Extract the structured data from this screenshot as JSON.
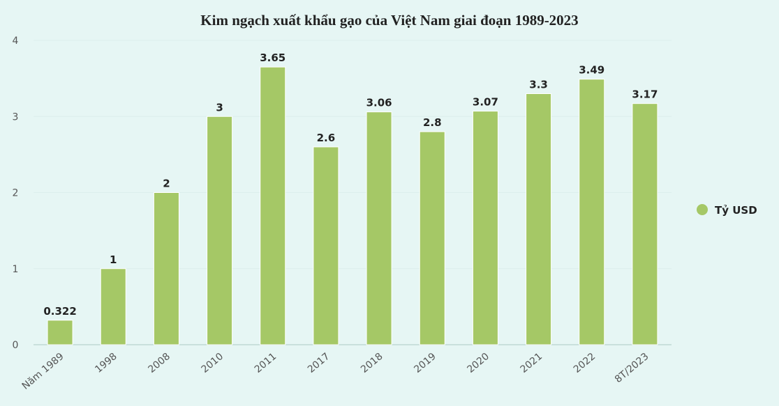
{
  "chart_data": {
    "type": "bar",
    "title": "Kim ngạch xuất khẩu gạo của Việt Nam giai đoạn 1989-2023",
    "categories": [
      "Năm 1989",
      "1998",
      "2008",
      "2010",
      "2011",
      "2017",
      "2018",
      "2019",
      "2020",
      "2021",
      "2022",
      "8T/2023"
    ],
    "series": [
      {
        "name": "Tỷ USD",
        "color": "#a5c866",
        "values": [
          0.322,
          1,
          2,
          3,
          3.65,
          2.6,
          3.06,
          2.8,
          3.07,
          3.3,
          3.49,
          3.17
        ]
      }
    ],
    "data_labels": [
      "0.322",
      "1",
      "2",
      "3",
      "3.65",
      "2.6",
      "3.06",
      "2.8",
      "3.07",
      "3.3",
      "3.49",
      "3.17"
    ],
    "y_ticks": [
      "0",
      "1",
      "2",
      "3",
      "4"
    ],
    "ylim": [
      0,
      4
    ],
    "xlabel": "",
    "ylabel": "",
    "grid": true,
    "legend_position": "right"
  }
}
